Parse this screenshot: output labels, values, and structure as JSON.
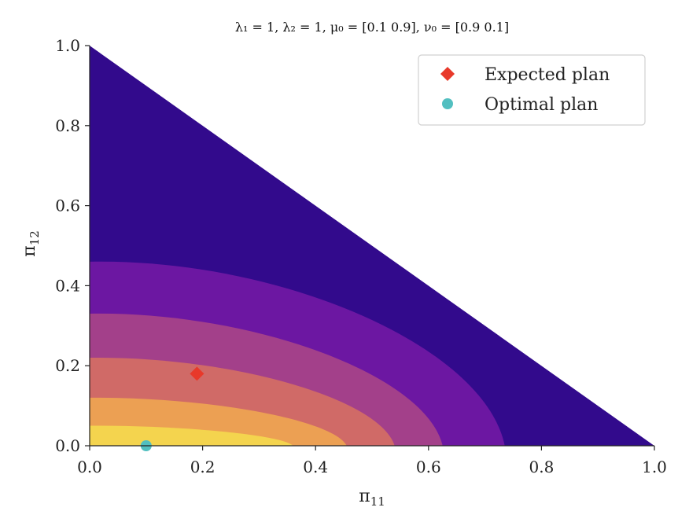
{
  "chart_data": {
    "type": "contour",
    "title": "λ₁ = 1, λ₂ = 1, μ₀ = [0.1 0.9], ν₀ = [0.9 0.1]",
    "xlabel": "π11",
    "ylabel": "π12",
    "xlim": [
      0.0,
      1.0
    ],
    "ylim": [
      0.0,
      1.0
    ],
    "x_ticks": [
      "0.0",
      "0.2",
      "0.4",
      "0.6",
      "0.8",
      "1.0"
    ],
    "y_ticks": [
      "0.0",
      "0.2",
      "0.4",
      "0.6",
      "0.8",
      "1.0"
    ],
    "domain": "triangle x ≥ 0, y ≥ 0, x + y ≤ 1",
    "contour_levels": [
      {
        "level": 1,
        "color": "#320a8c",
        "x_intercept": 1.0,
        "y_intercept": 1.0
      },
      {
        "level": 2,
        "color": "#6c17a2",
        "x_intercept": 0.735,
        "y_intercept": 0.46
      },
      {
        "level": 3,
        "color": "#a3408a",
        "x_intercept": 0.625,
        "y_intercept": 0.33
      },
      {
        "level": 4,
        "color": "#d06a67",
        "x_intercept": 0.54,
        "y_intercept": 0.22
      },
      {
        "level": 5,
        "color": "#eca053",
        "x_intercept": 0.455,
        "y_intercept": 0.12
      },
      {
        "level": 6,
        "color": "#f4d44e",
        "x_intercept": 0.36,
        "y_intercept": 0.05
      }
    ],
    "points": [
      {
        "name": "Expected plan",
        "x": 0.19,
        "y": 0.18,
        "marker": "diamond",
        "color": "#e8392a"
      },
      {
        "name": "Optimal plan",
        "x": 0.1,
        "y": 0.0,
        "marker": "circle",
        "color": "#52bfc0"
      }
    ],
    "legend": {
      "position": "top-right",
      "entries": [
        {
          "label": "Expected plan",
          "marker": "diamond",
          "color": "#e8392a"
        },
        {
          "label": "Optimal plan",
          "marker": "circle",
          "color": "#52bfc0"
        }
      ]
    }
  }
}
